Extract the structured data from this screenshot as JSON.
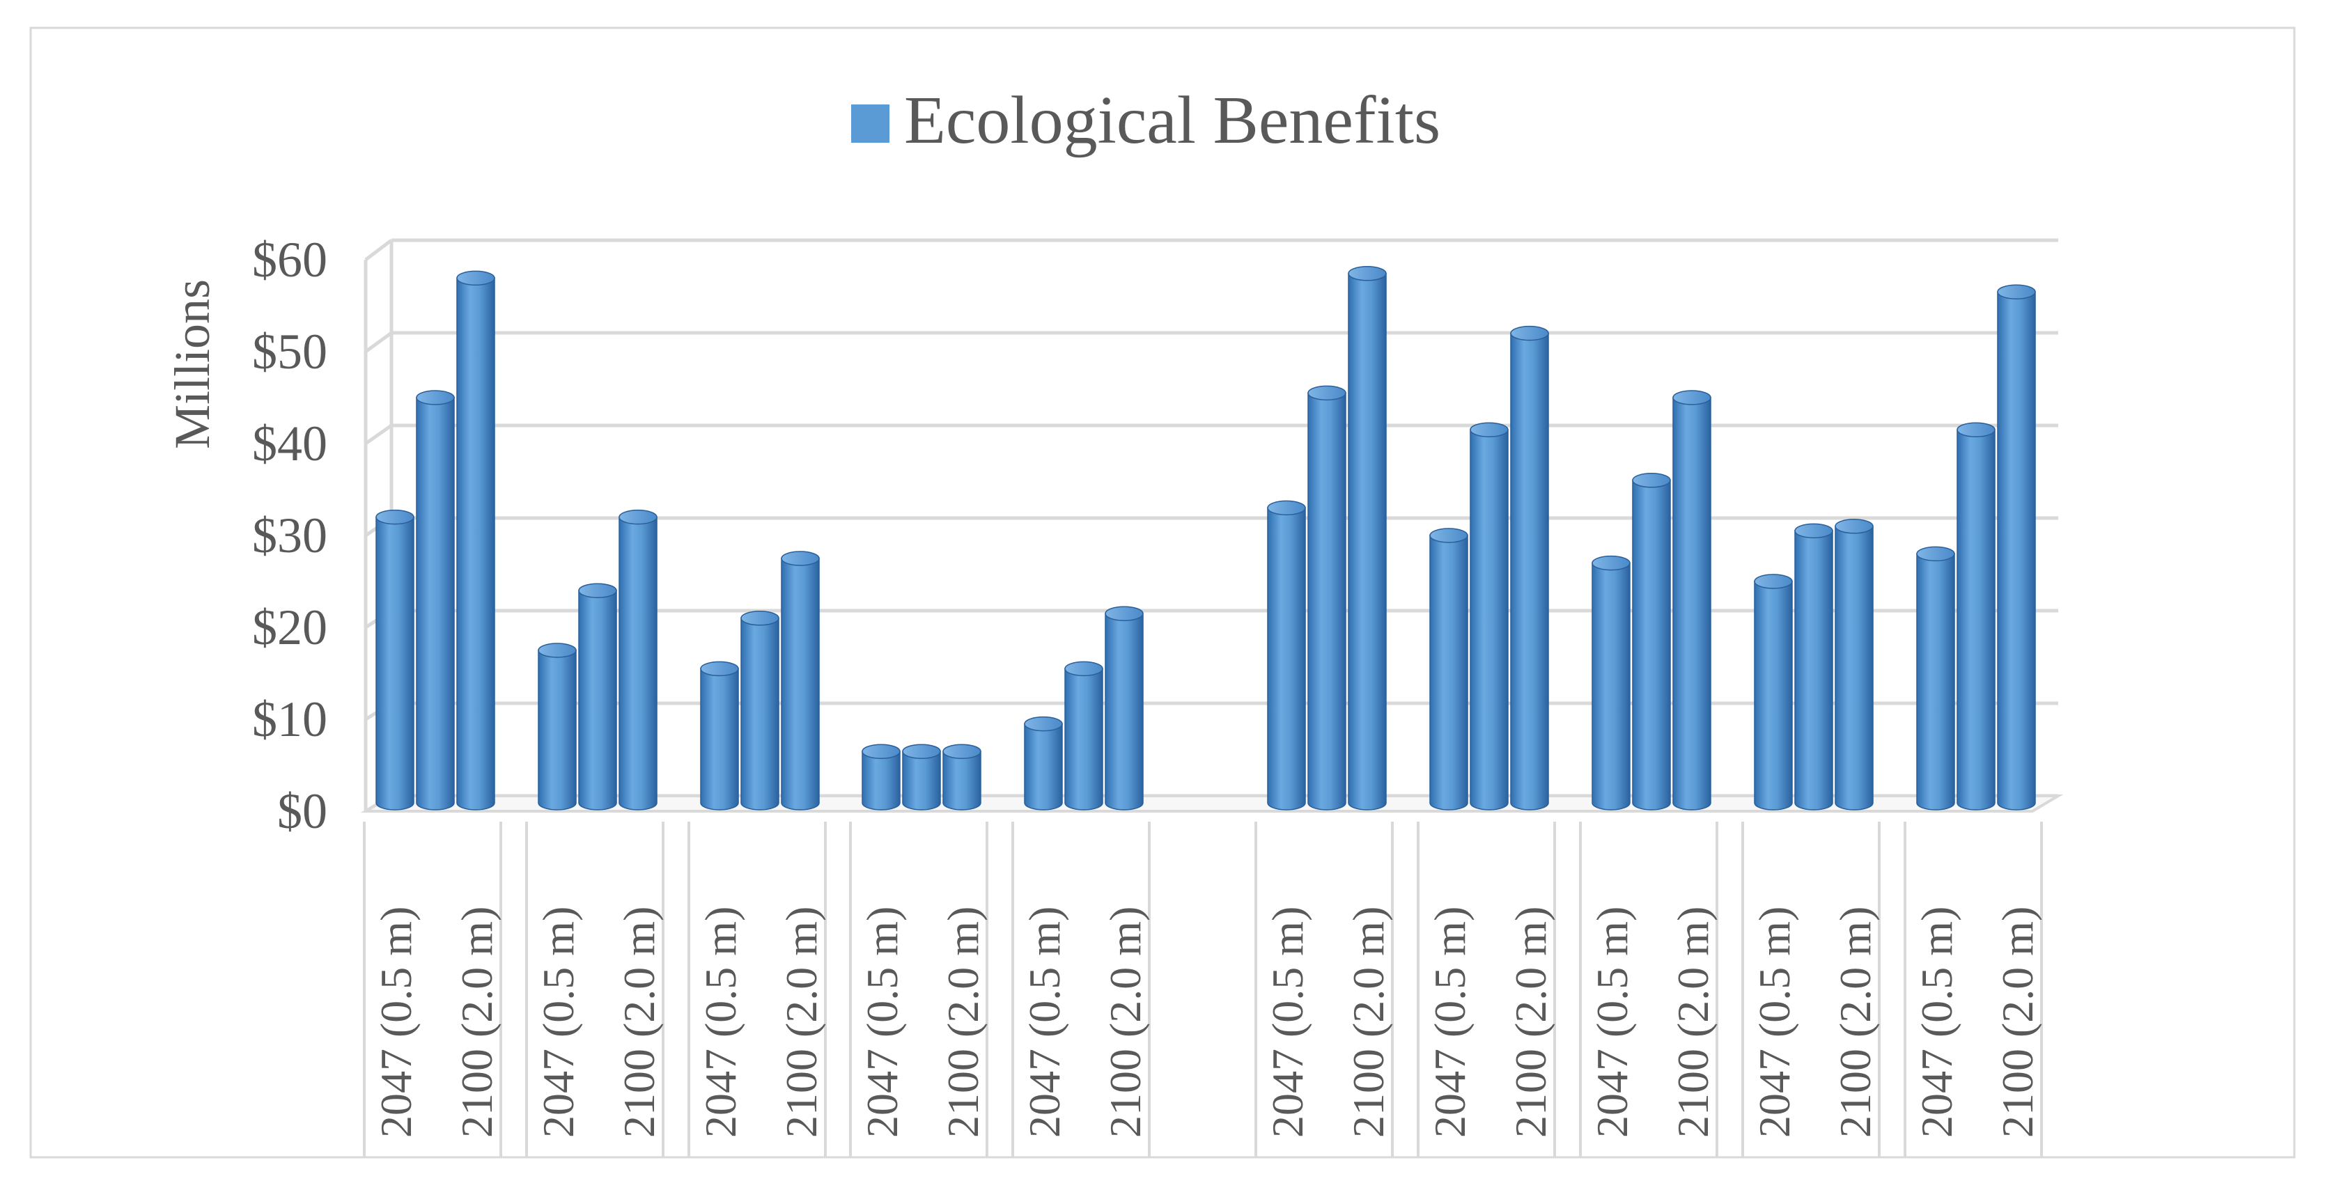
{
  "chart_data": {
    "type": "bar",
    "style": "3d-cylinder",
    "title": "",
    "legend": {
      "position": "top-center",
      "entries": [
        "Ecological Benefits"
      ]
    },
    "ylabel": "Millions",
    "xlabel": "",
    "ylim": [
      0,
      60
    ],
    "yticks": [
      "$0",
      "$10",
      "$20",
      "$30",
      "$40",
      "$50",
      "$60"
    ],
    "grid": true,
    "groups": [
      {
        "labels": [
          "2047 (0.5 m)",
          "",
          "2100 (2.0 m)"
        ],
        "values": [
          32,
          45,
          58
        ]
      },
      {
        "labels": [
          "2047 (0.5 m)",
          "",
          "2100 (2.0 m)"
        ],
        "values": [
          17.5,
          24,
          32
        ]
      },
      {
        "labels": [
          "2047 (0.5 m)",
          "",
          "2100 (2.0 m)"
        ],
        "values": [
          15.5,
          21,
          27.5
        ]
      },
      {
        "labels": [
          "2047 (0.5 m)",
          "",
          "2100 (2.0 m)"
        ],
        "values": [
          6.5,
          6.5,
          6.5
        ]
      },
      {
        "labels": [
          "2047 (0.5 m)",
          "",
          "2100 (2.0 m)"
        ],
        "values": [
          9.5,
          15.5,
          21.5
        ]
      },
      {
        "labels": [
          "2047 (0.5 m)",
          "",
          "2100 (2.0 m)"
        ],
        "values": [
          33,
          45.5,
          58.5
        ]
      },
      {
        "labels": [
          "2047 (0.5 m)",
          "",
          "2100 (2.0 m)"
        ],
        "values": [
          30,
          41.5,
          52
        ]
      },
      {
        "labels": [
          "2047 (0.5 m)",
          "",
          "2100 (2.0 m)"
        ],
        "values": [
          27,
          36,
          45
        ]
      },
      {
        "labels": [
          "2047 (0.5 m)",
          "",
          "2100 (2.0 m)"
        ],
        "values": [
          25,
          30.5,
          31
        ]
      },
      {
        "labels": [
          "2047 (0.5 m)",
          "",
          "2100 (2.0 m)"
        ],
        "values": [
          28,
          41.5,
          56.5
        ]
      }
    ],
    "series": [
      {
        "name": "Ecological Benefits",
        "color": "#5b9bd5"
      }
    ],
    "colors": {
      "bar": "#5b9bd5",
      "bar_dark": "#2f6fb0",
      "bar_light": "#a6c8ec",
      "grid": "#d9d9d9",
      "text": "#595959",
      "border": "#d9d9d9"
    }
  }
}
